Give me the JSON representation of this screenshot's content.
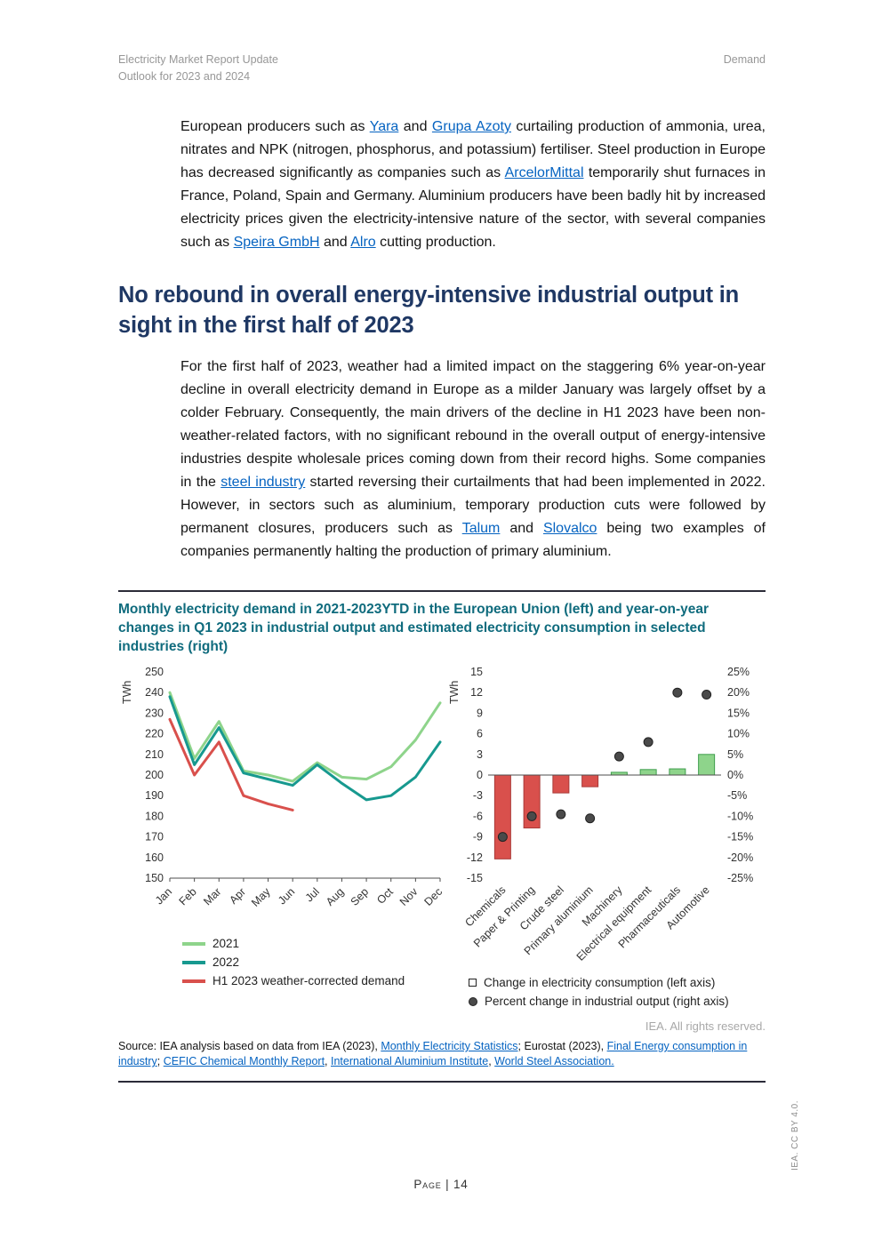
{
  "page": {
    "header": {
      "left_line1": "Electricity Market Report Update",
      "left_line2": "Outlook for 2023 and 2024",
      "right": "Demand"
    },
    "rights": "IEA. All rights reserved.",
    "footer": {
      "page_label": "Page | 14",
      "side_note": "IEA. CC BY 4.0."
    }
  },
  "content": {
    "paragraph1": [
      {
        "text": "European producers such as "
      },
      {
        "text": "Yara",
        "link": true
      },
      {
        "text": " and "
      },
      {
        "text": "Grupa Azoty",
        "link": true
      },
      {
        "text": " curtailing production of ammonia, urea, nitrates and NPK (nitrogen, phosphorus, and potassium) fertiliser. Steel production in Europe has decreased significantly as companies such as "
      },
      {
        "text": "ArcelorMittal",
        "link": true
      },
      {
        "text": " temporarily shut furnaces in France, Poland, Spain and Germany. Aluminium producers have been badly hit by increased electricity prices given the electricity-intensive nature of the sector, with several companies such as "
      },
      {
        "text": "Speira GmbH",
        "link": true
      },
      {
        "text": " and "
      },
      {
        "text": "Alro",
        "link": true
      },
      {
        "text": " cutting production."
      }
    ],
    "heading": "No rebound in overall energy-intensive industrial output in sight in the first half of 2023",
    "paragraph2": [
      {
        "text": "For the first half of 2023, weather had a limited impact on the staggering 6% year-on-year decline in overall electricity demand in Europe as a milder January was largely offset by a colder February. Consequently, the main drivers of the decline in H1 2023 have been non-weather-related factors, with no significant rebound in the overall output of energy-intensive industries despite wholesale prices coming down from their record highs. Some companies in the "
      },
      {
        "text": "steel industry",
        "link": true
      },
      {
        "text": " started reversing their curtailments that had been implemented in 2022. However, in sectors such as aluminium, temporary production cuts were followed by permanent closures, producers such as "
      },
      {
        "text": "Talum",
        "link": true
      },
      {
        "text": " and "
      },
      {
        "text": "Slovalco",
        "link": true
      },
      {
        "text": " being two examples of companies permanently halting the production of primary aluminium."
      }
    ],
    "figure_title": "Monthly electricity demand in 2021-2023YTD in the European Union (left) and year-on-year changes in Q1 2023 in industrial output and estimated electricity consumption in selected industries (right)",
    "source": [
      {
        "text": "Source: IEA analysis based on data from IEA (2023), "
      },
      {
        "text": "Monthly Electricity Statistics",
        "link": true
      },
      {
        "text": "; Eurostat (2023), "
      },
      {
        "text": "Final Energy consumption in industry",
        "link": true
      },
      {
        "text": "; "
      },
      {
        "text": "CEFIC Chemical Monthly Report",
        "link": true
      },
      {
        "text": ", "
      },
      {
        "text": "International Aluminium Institute",
        "link": true
      },
      {
        "text": ", "
      },
      {
        "text": "World Steel Association.",
        "link": true
      }
    ]
  },
  "chart_data": [
    {
      "type": "line",
      "axis_label": "TWh",
      "x": [
        "Jan",
        "Feb",
        "Mar",
        "Apr",
        "May",
        "Jun",
        "Jul",
        "Aug",
        "Sep",
        "Oct",
        "Nov",
        "Dec"
      ],
      "ylim": [
        150,
        250
      ],
      "ytick_step": 10,
      "grid": false,
      "legend_position": "bottom-left",
      "series": [
        {
          "name": "2021",
          "color": "#8ed48b",
          "values": [
            240,
            208,
            226,
            202,
            200,
            197,
            206,
            199,
            198,
            204,
            217,
            235
          ]
        },
        {
          "name": "2022",
          "color": "#17998f",
          "values": [
            238,
            205,
            223,
            201,
            198,
            195,
            205,
            196,
            188,
            190,
            199,
            216
          ]
        },
        {
          "name": "H1 2023 weather-corrected demand",
          "color": "#d9504c",
          "values": [
            227,
            200,
            216,
            190,
            186,
            183
          ]
        }
      ]
    },
    {
      "type": "bar-scatter",
      "axis_label_left": "TWh",
      "categories": [
        "Chemicals",
        "Paper & Printing",
        "Crude steel",
        "Primary aluminium",
        "Machinery",
        "Electrical equipment",
        "Pharmaceuticals",
        "Automotive"
      ],
      "ylim_left": [
        -15,
        15
      ],
      "ytick_step_left": 3,
      "ylim_right_pct": [
        -25,
        25
      ],
      "ytick_step_right": 5,
      "right_tick_suffix": "%",
      "grid": false,
      "bars": {
        "name": "Change in electricity consumption (left axis)",
        "values": [
          -12.2,
          -7.7,
          -2.6,
          -1.7,
          0.4,
          0.8,
          0.9,
          3.0
        ],
        "color_negative": "#d9504c",
        "stroke_negative": "#a93a38",
        "color_positive": "#8ed48b",
        "stroke_positive": "#3f9e4d"
      },
      "dots": {
        "name": "Percent change in industrial output (right axis)",
        "values_pct": [
          -15,
          -10,
          -9.5,
          -10.5,
          4.5,
          8,
          20,
          19.5
        ],
        "color": "#4a4a4a"
      }
    }
  ]
}
